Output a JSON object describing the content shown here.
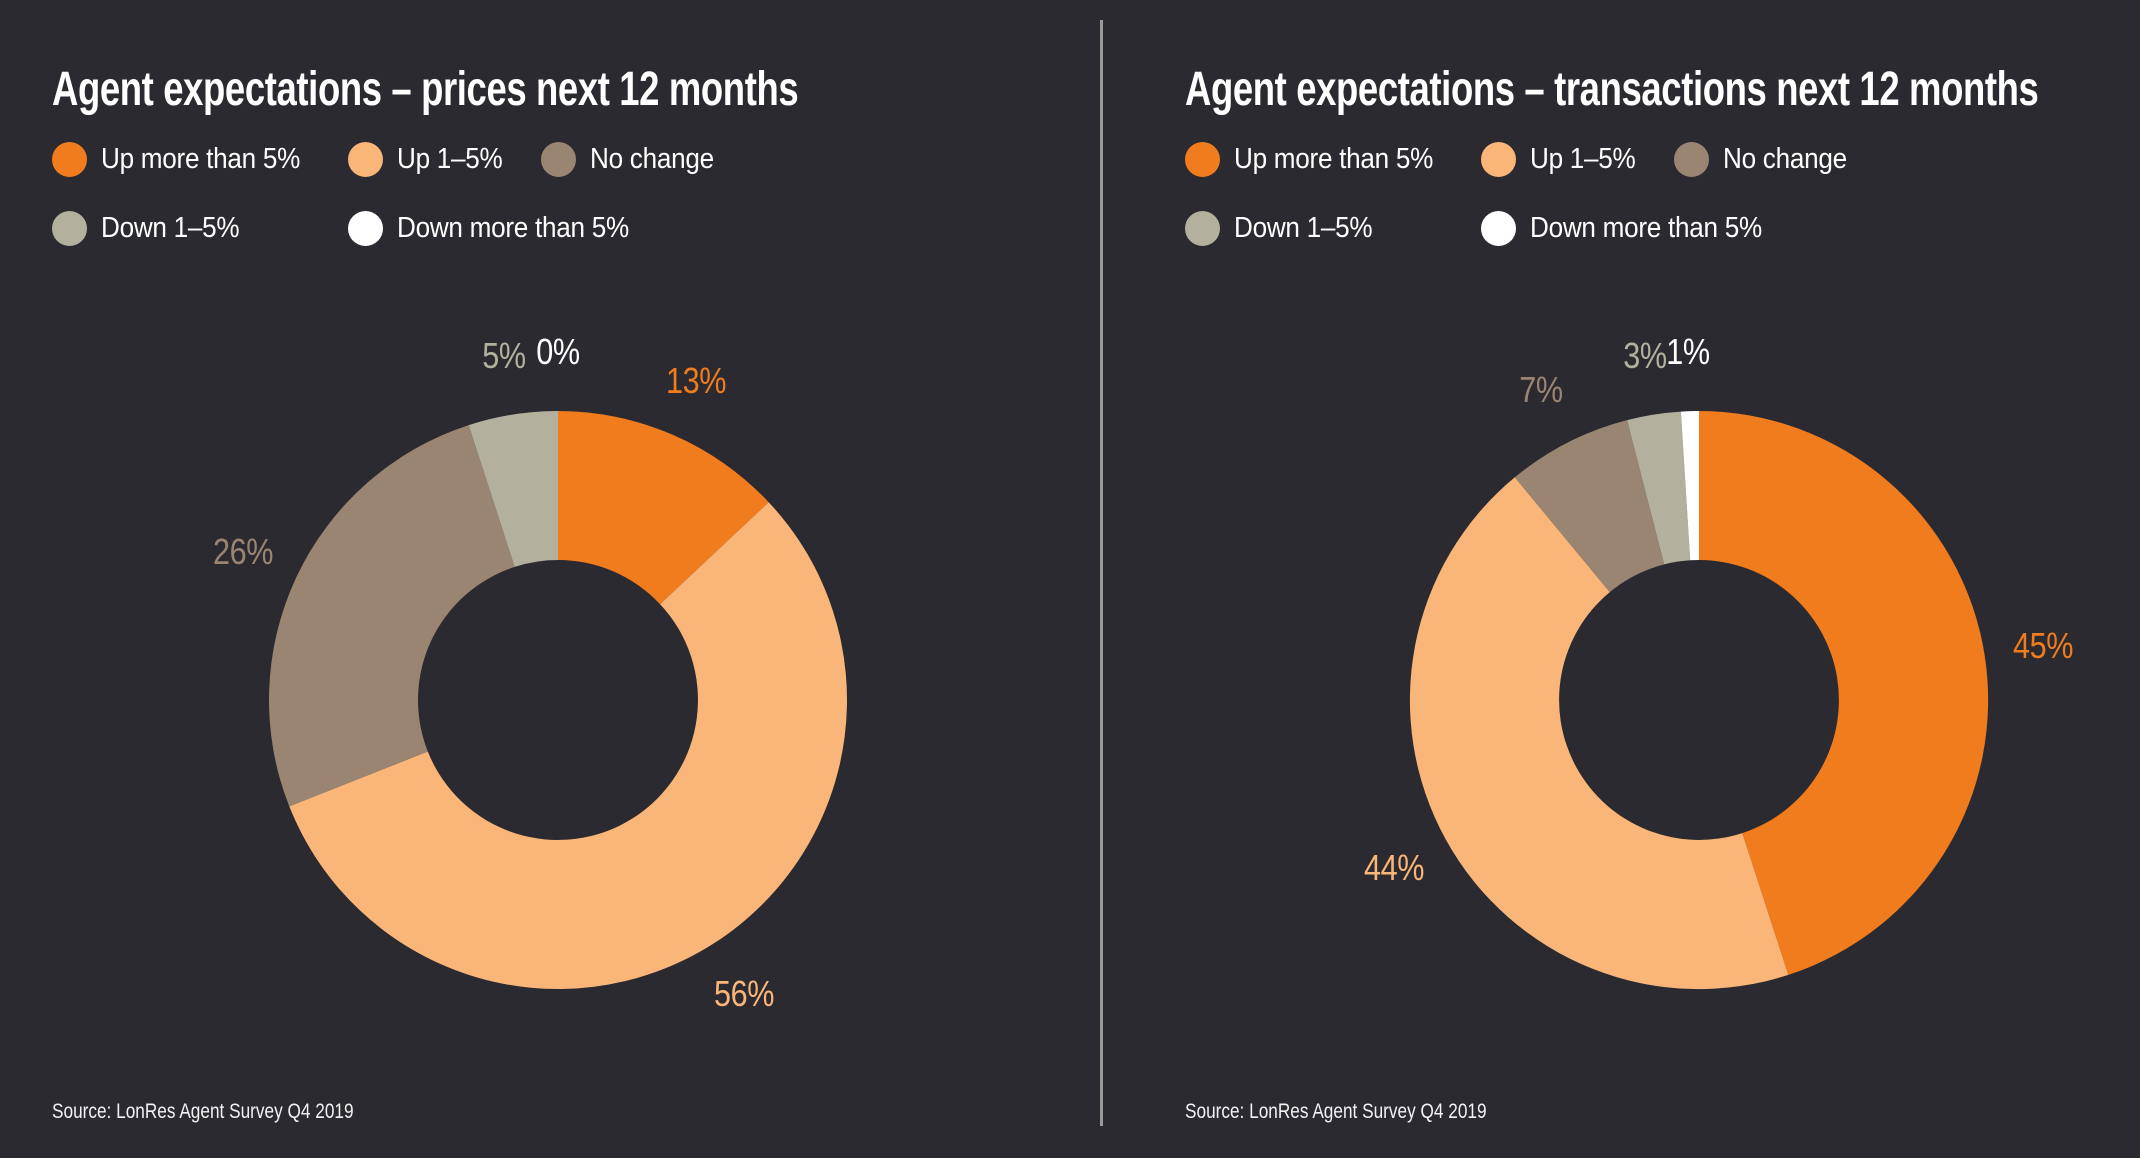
{
  "background": "#2b2a30",
  "divider_color": "#9a9a9a",
  "text_color": "#ffffff",
  "chart_data": [
    {
      "type": "pie",
      "subtype": "donut",
      "title": "Agent expectations – prices next 12 months",
      "categories": [
        "Up more than 5%",
        "Up 1–5%",
        "No change",
        "Down 1–5%",
        "Down more than 5%"
      ],
      "values": [
        13,
        56,
        26,
        5,
        0
      ],
      "unit": "%",
      "colors": [
        "#f07c1e",
        "#fab578",
        "#9a8572",
        "#b3b19e",
        "#ffffff"
      ],
      "direction": "clockwise",
      "start_angle_deg": 0,
      "inner_radius_ratio": 0.48,
      "legend_position": "top",
      "source": "Source: LonRes Agent Survey Q4 2019"
    },
    {
      "type": "pie",
      "subtype": "donut",
      "title": "Agent expectations – transactions next 12 months",
      "categories": [
        "Up more than 5%",
        "Up 1–5%",
        "No change",
        "Down 1–5%",
        "Down more than 5%"
      ],
      "values": [
        45,
        44,
        7,
        3,
        1
      ],
      "unit": "%",
      "colors": [
        "#f07c1e",
        "#fab578",
        "#9a8572",
        "#b3b19e",
        "#ffffff"
      ],
      "direction": "clockwise",
      "start_angle_deg": 0,
      "inner_radius_ratio": 0.48,
      "legend_position": "top",
      "source": "Source: LonRes Agent Survey Q4 2019"
    }
  ]
}
